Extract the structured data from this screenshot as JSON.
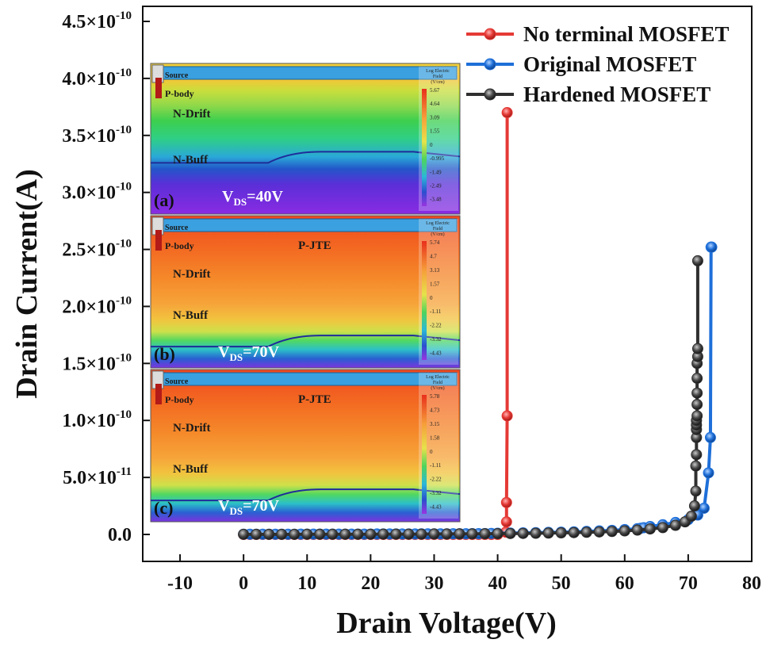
{
  "chart_data": {
    "type": "line",
    "xlabel": "Drain Voltage(V)",
    "ylabel": "Drain Current(A)",
    "xlim": [
      -15,
      80
    ],
    "ylim": [
      -1e-11,
      4.6e-10
    ],
    "x_ticks": [
      -10,
      0,
      10,
      20,
      30,
      40,
      50,
      60,
      70,
      80
    ],
    "x_tick_labels": [
      "-10",
      "0",
      "10",
      "20",
      "30",
      "40",
      "50",
      "60",
      "70",
      "80"
    ],
    "y_ticks": [
      0,
      5e-11,
      1e-10,
      1.5e-10,
      2e-10,
      2.5e-10,
      3e-10,
      3.5e-10,
      4e-10,
      4.5e-10
    ],
    "y_tick_labels": [
      {
        "mantissa": "0.0",
        "exp": ""
      },
      {
        "mantissa": "5.0×10",
        "exp": "-11"
      },
      {
        "mantissa": "1.0×10",
        "exp": "-10"
      },
      {
        "mantissa": "1.5×10",
        "exp": "-10"
      },
      {
        "mantissa": "2.0×10",
        "exp": "-10"
      },
      {
        "mantissa": "2.5×10",
        "exp": "-10"
      },
      {
        "mantissa": "3.0×10",
        "exp": "-10"
      },
      {
        "mantissa": "3.5×10",
        "exp": "-10"
      },
      {
        "mantissa": "4.0×10",
        "exp": "-10"
      },
      {
        "mantissa": "4.5×10",
        "exp": "-10"
      }
    ],
    "grid": false,
    "legend_position": "top-right",
    "series": [
      {
        "name": "No terminal MOSFET",
        "color": "#e53935",
        "x": [
          0,
          1,
          2,
          3,
          4,
          5,
          6,
          7,
          8,
          9,
          10,
          11,
          12,
          13,
          14,
          15,
          16,
          17,
          18,
          19,
          20,
          21,
          22,
          23,
          24,
          25,
          26,
          27,
          28,
          29,
          30,
          31,
          32,
          33,
          34,
          35,
          36,
          37,
          38,
          39,
          40,
          41.3,
          41.4,
          41.4,
          41.5,
          41.5
        ],
        "y": [
          0,
          0,
          0,
          0,
          0,
          0,
          0,
          0,
          0,
          0,
          0,
          0,
          0,
          0,
          0,
          0,
          0,
          0,
          0,
          0,
          0,
          0,
          0,
          0,
          0,
          0,
          0,
          0,
          0,
          0,
          0,
          0,
          0,
          0,
          0,
          0,
          0,
          0,
          0,
          0,
          0,
          2e-12,
          1.1e-11,
          2.8e-11,
          1.04e-10,
          3.7e-10
        ]
      },
      {
        "name": "Original MOSFET",
        "color": "#1e6fd9",
        "x": [
          0,
          1,
          2,
          3,
          4,
          5,
          6,
          7,
          8,
          9,
          10,
          11,
          12,
          13,
          14,
          15,
          16,
          17,
          18,
          19,
          20,
          21,
          22,
          23,
          24,
          25,
          26,
          27,
          28,
          29,
          30,
          31,
          32,
          33,
          34,
          35,
          36,
          37,
          38,
          39,
          40,
          42,
          44,
          46,
          48,
          50,
          52,
          54,
          56,
          58,
          60,
          62,
          62.5,
          63,
          64,
          66,
          68,
          70,
          71.5,
          72.5,
          73.2,
          73.5,
          73.6,
          73.7
        ],
        "y": [
          2e-13,
          2e-13,
          2e-13,
          2e-13,
          2e-13,
          2e-13,
          2e-13,
          2e-13,
          2e-13,
          3e-13,
          3e-13,
          3e-13,
          3e-13,
          3e-13,
          3e-13,
          3e-13,
          3e-13,
          3e-13,
          3e-13,
          3e-13,
          3e-13,
          4e-13,
          4e-13,
          4e-13,
          4e-13,
          4e-13,
          4e-13,
          4e-13,
          5e-13,
          5e-13,
          5e-13,
          5e-13,
          5e-13,
          6e-13,
          6e-13,
          6e-13,
          7e-13,
          7e-13,
          8e-13,
          9e-13,
          1e-12,
          1.2e-12,
          1.4e-12,
          1.6e-12,
          1.8e-12,
          2e-12,
          2.3e-12,
          2.7e-12,
          3.1e-12,
          3.6e-12,
          4.3e-12,
          5e-12,
          5.4e-12,
          5.9e-12,
          7e-12,
          8.5e-12,
          1.05e-11,
          1.3e-11,
          1.7e-11,
          2.3e-11,
          5.4e-11,
          8.5e-11,
          2.52e-10,
          2.52e-10
        ]
      },
      {
        "name": "Hardened MOSFET",
        "color": "#2f2f2f",
        "x": [
          0,
          2,
          4,
          6,
          8,
          10,
          12,
          14,
          16,
          18,
          20,
          22,
          24,
          26,
          28,
          30,
          32,
          34,
          36,
          38,
          40,
          42,
          44,
          46,
          48,
          50,
          52,
          54,
          56,
          58,
          60,
          62,
          64,
          66,
          68,
          69.5,
          70.5,
          71,
          71.2,
          71.2,
          71.3,
          71.3,
          71.3,
          71.3,
          71.3,
          71.4,
          71.4,
          71.4,
          71.4,
          71.4,
          71.5,
          71.5,
          71.5
        ],
        "y": [
          1e-13,
          1e-13,
          1e-13,
          1e-13,
          1e-13,
          2e-13,
          2e-13,
          2e-13,
          2e-13,
          2e-13,
          2e-13,
          3e-13,
          3e-13,
          3e-13,
          3e-13,
          4e-13,
          4e-13,
          5e-13,
          5e-13,
          6e-13,
          7e-13,
          8e-13,
          9e-13,
          1e-12,
          1.2e-12,
          1.4e-12,
          1.6e-12,
          1.9e-12,
          2.2e-12,
          2.6e-12,
          3.1e-12,
          3.8e-12,
          4.8e-12,
          6e-12,
          8e-12,
          1.1e-11,
          1.6e-11,
          2.5e-11,
          3.8e-11,
          6e-11,
          7e-11,
          8.5e-11,
          9.2e-11,
          9.6e-11,
          1e-10,
          1.04e-10,
          1.14e-10,
          1.24e-10,
          1.37e-10,
          1.5e-10,
          1.56e-10,
          1.63e-10,
          2.4e-10
        ]
      }
    ],
    "insets": [
      {
        "panel": "(a)",
        "vds_prefix": "V",
        "vds_sub": "DS",
        "vds_value": "=40V",
        "regions": [
          "Source",
          "P-body",
          "N-Drift",
          "N-Buff"
        ],
        "jte_label": "",
        "scale_title": [
          "Log Electric",
          "Field",
          "(V/cm)"
        ],
        "scale_values": [
          "5.67",
          "4.64",
          "3.09",
          "1.55",
          "0",
          "-0.995",
          "-1.49",
          "-2.49",
          "-3.48"
        ]
      },
      {
        "panel": "(b)",
        "vds_prefix": "V",
        "vds_sub": "DS",
        "vds_value": "=70V",
        "regions": [
          "Source",
          "P-body",
          "N-Drift",
          "N-Buff"
        ],
        "jte_label": "P-JTE",
        "scale_title": [
          "Log Electric",
          "Field",
          "(V/cm)"
        ],
        "scale_values": [
          "5.74",
          "4.7",
          "3.13",
          "1.57",
          "0",
          "-1.11",
          "-2.22",
          "-3.32",
          "-4.43"
        ]
      },
      {
        "panel": "(c)",
        "vds_prefix": "V",
        "vds_sub": "DS",
        "vds_value": "=70V",
        "regions": [
          "Source",
          "P-body",
          "N-Drift",
          "N-Buff"
        ],
        "jte_label": "P-JTE",
        "scale_title": [
          "Log Electric",
          "Field",
          "(V/cm)"
        ],
        "scale_values": [
          "5.78",
          "4.73",
          "3.15",
          "1.58",
          "0",
          "-1.11",
          "-2.22",
          "-3.32",
          "-4.43"
        ]
      }
    ]
  }
}
